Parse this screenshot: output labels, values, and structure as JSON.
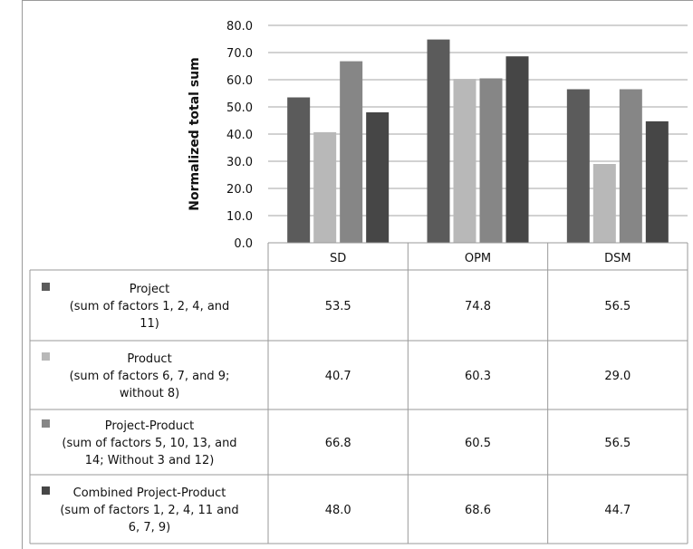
{
  "chart_data": {
    "type": "bar",
    "ylabel": "Normalized total sum",
    "ylim": [
      0,
      80
    ],
    "yticks": [
      "0.0",
      "10.0",
      "20.0",
      "30.0",
      "40.0",
      "50.0",
      "60.0",
      "70.0",
      "80.0"
    ],
    "categories": [
      "SD",
      "OPM",
      "DSM"
    ],
    "grid": true,
    "legend_placement": "data table below chart",
    "series": [
      {
        "name": "Project",
        "legend_lines": [
          "Project",
          "(sum of factors 1, 2, 4, and",
          "11)"
        ],
        "color": "#5b5b5b",
        "values": [
          53.5,
          74.8,
          56.5
        ],
        "labels": [
          "53.5",
          "74.8",
          "56.5"
        ]
      },
      {
        "name": "Product",
        "legend_lines": [
          "Product",
          "(sum of factors 6, 7, and 9;",
          "without 8)"
        ],
        "color": "#b8b8b8",
        "values": [
          40.7,
          60.3,
          29.0
        ],
        "labels": [
          "40.7",
          "60.3",
          "29.0"
        ]
      },
      {
        "name": "Project-Product",
        "legend_lines": [
          "Project-Product",
          "(sum of factors 5, 10, 13, and",
          "14; Without 3 and 12)"
        ],
        "color": "#868686",
        "values": [
          66.8,
          60.5,
          56.5
        ],
        "labels": [
          "66.8",
          "60.5",
          "56.5"
        ]
      },
      {
        "name": "Combined Project-Product",
        "legend_lines": [
          "Combined Project-Product",
          "(sum of factors 1, 2, 4, 11 and",
          "6, 7, 9)"
        ],
        "color": "#464646",
        "values": [
          48.0,
          68.6,
          44.7
        ],
        "labels": [
          "48.0",
          "68.6",
          "44.7"
        ]
      }
    ]
  }
}
